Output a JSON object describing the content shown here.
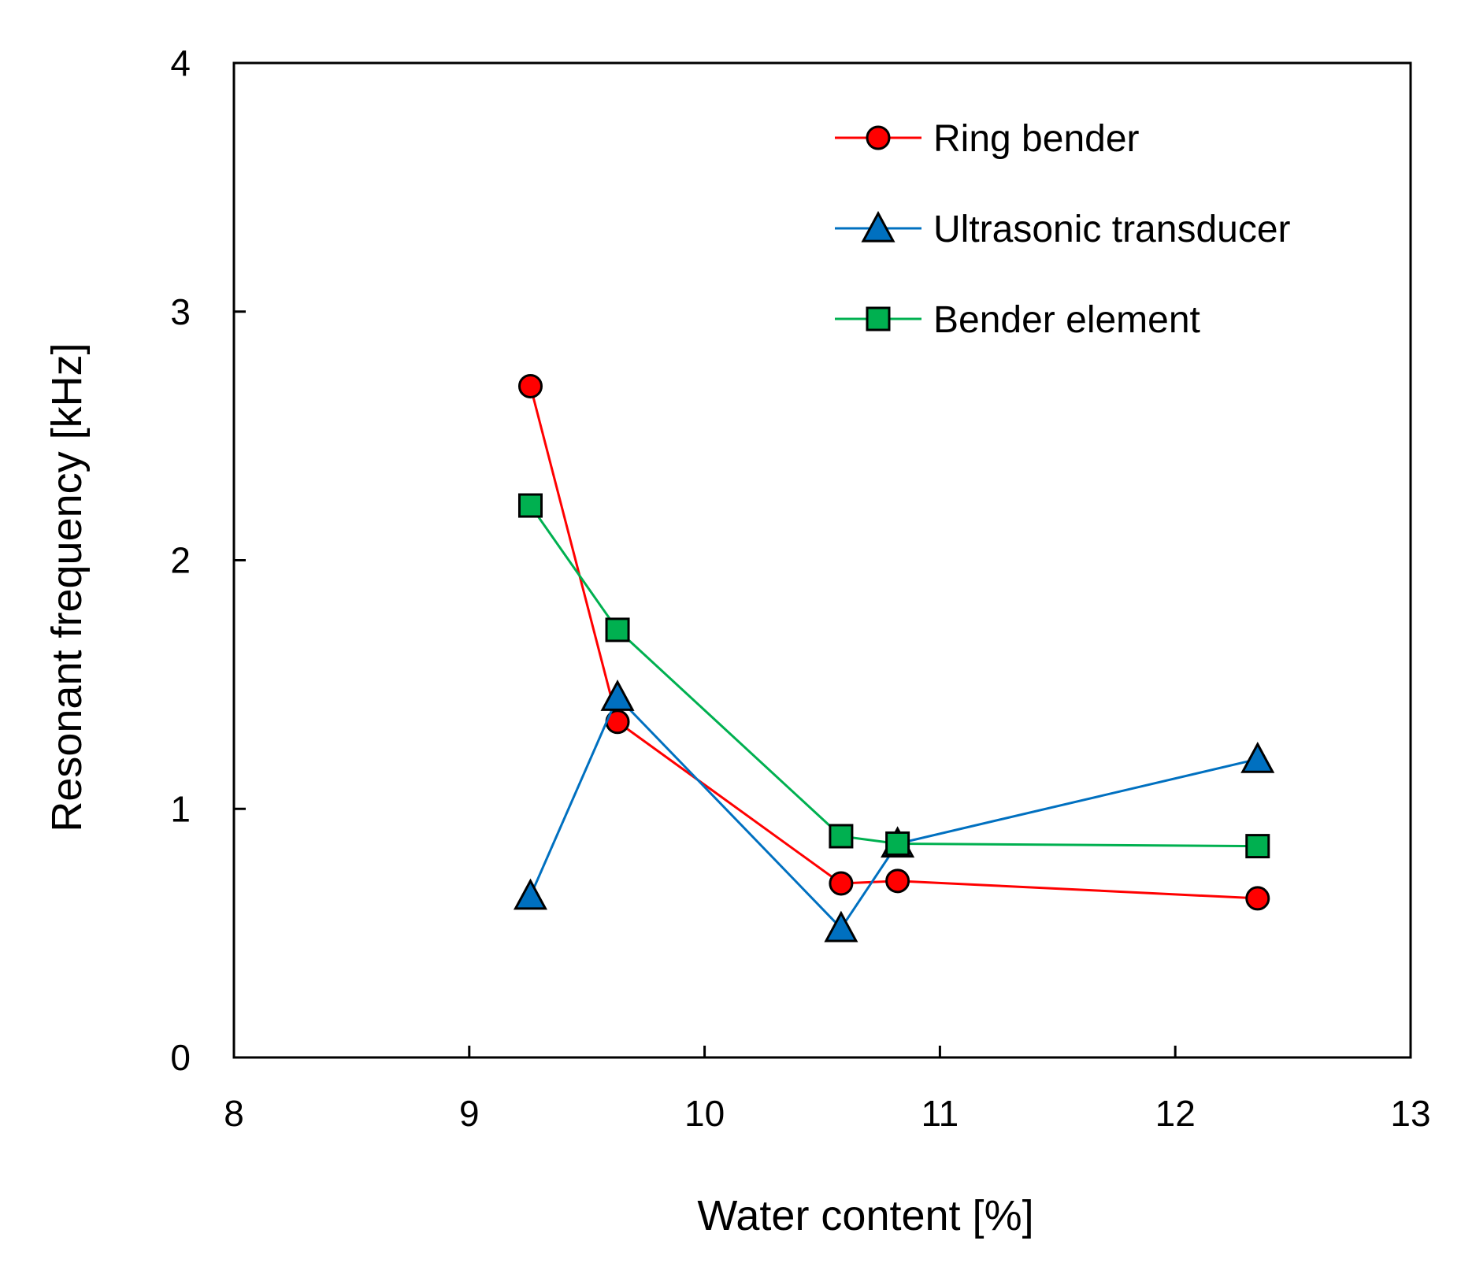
{
  "chart_data": {
    "type": "line",
    "title": "",
    "xlabel": "Water content [%]",
    "ylabel": "Resonant frequency [kHz]",
    "xlim": [
      8,
      13
    ],
    "ylim": [
      0,
      4
    ],
    "x_ticks": [
      8,
      9,
      10,
      11,
      12,
      13
    ],
    "y_ticks": [
      0,
      1,
      2,
      3,
      4
    ],
    "grid": false,
    "legend_position": "top-right",
    "series": [
      {
        "name": "Ring bender",
        "color": "#ff0000",
        "marker": "circle",
        "marker_fill": "#ff0000",
        "x": [
          9.26,
          9.63,
          10.58,
          10.82,
          12.35
        ],
        "y": [
          2.7,
          1.35,
          0.7,
          0.71,
          0.64
        ]
      },
      {
        "name": "Ultrasonic transducer",
        "color": "#0070c0",
        "marker": "triangle",
        "marker_fill": "#0070c0",
        "x": [
          9.26,
          9.63,
          10.58,
          10.82,
          12.35
        ],
        "y": [
          0.65,
          1.45,
          0.52,
          0.86,
          1.2
        ]
      },
      {
        "name": "Bender element",
        "color": "#00b050",
        "marker": "square",
        "marker_fill": "#00b050",
        "x": [
          9.26,
          9.63,
          10.58,
          10.82,
          12.35
        ],
        "y": [
          2.22,
          1.72,
          0.89,
          0.86,
          0.85
        ]
      }
    ]
  }
}
